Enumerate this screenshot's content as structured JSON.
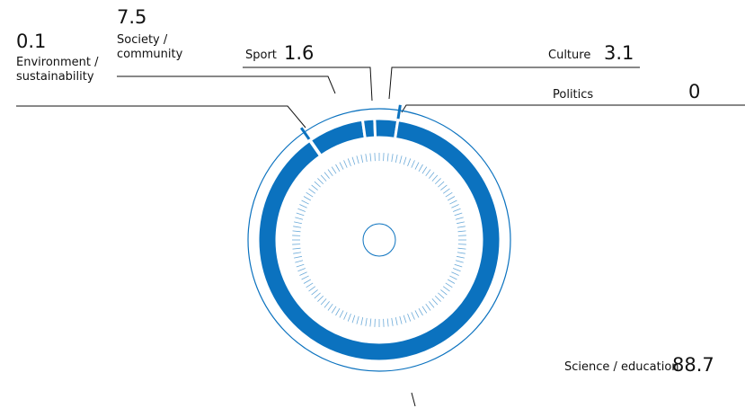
{
  "chart_data": {
    "type": "donut",
    "categories": [
      "Environment / sustainability",
      "Society / community",
      "Sport",
      "Culture",
      "Politics",
      "Science / education"
    ],
    "values": [
      0.1,
      7.5,
      1.6,
      3.1,
      0.0,
      88.7
    ],
    "color": "#0b72bf"
  }
}
